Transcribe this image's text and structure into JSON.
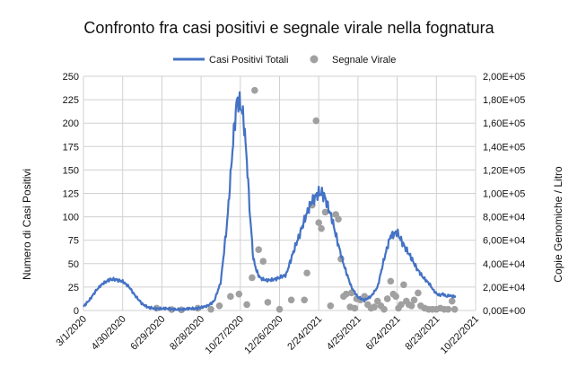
{
  "chart_data": {
    "type": "line",
    "title": "Confronto fra casi positivi e segnale virale nella fognatura",
    "ylabel_left": "Numero di Casi Positivi",
    "ylabel_right": "Copie Genomiche / Litro",
    "x_ticks": [
      "3/1/2020",
      "4/30/2020",
      "6/29/2020",
      "8/28/2020",
      "10/27/2020",
      "12/26/2020",
      "2/24/2021",
      "4/25/2021",
      "6/24/2021",
      "8/23/2021",
      "10/22/2021"
    ],
    "y_left_ticks": [
      "0",
      "25",
      "50",
      "75",
      "100",
      "125",
      "150",
      "175",
      "200",
      "225",
      "250"
    ],
    "y_right_ticks": [
      "0,00E+00",
      "2,00E+04",
      "4,00E+04",
      "6,00E+04",
      "8,00E+04",
      "1,00E+05",
      "1,20E+05",
      "1,40E+05",
      "1,60E+05",
      "1,80E+05",
      "2,00E+05"
    ],
    "ylim_left": [
      0,
      250
    ],
    "ylim_right": [
      0,
      200000
    ],
    "x_range_days": [
      0,
      600
    ],
    "grid": true,
    "legend_position": "top",
    "series": [
      {
        "name": "Casi Positivi Totali",
        "kind": "line",
        "axis": "left",
        "color": "#4472c4",
        "x_days": [
          0,
          10,
          20,
          30,
          40,
          50,
          60,
          70,
          80,
          90,
          100,
          110,
          120,
          130,
          140,
          150,
          160,
          170,
          180,
          190,
          200,
          210,
          220,
          230,
          235,
          240,
          245,
          250,
          255,
          260,
          265,
          270,
          280,
          290,
          300,
          310,
          320,
          330,
          340,
          350,
          360,
          365,
          370,
          380,
          390,
          400,
          410,
          420,
          430,
          440,
          450,
          460,
          470,
          480,
          490,
          500,
          510,
          520,
          530,
          535,
          540,
          545,
          550,
          555,
          560,
          565,
          570
        ],
        "y": [
          4,
          12,
          22,
          29,
          33,
          33,
          31,
          25,
          15,
          7,
          3,
          2,
          2,
          2,
          1,
          1,
          2,
          2,
          3,
          5,
          10,
          30,
          95,
          190,
          225,
          220,
          205,
          160,
          100,
          55,
          42,
          35,
          32,
          33,
          35,
          38,
          60,
          80,
          100,
          118,
          125,
          125,
          120,
          98,
          70,
          45,
          25,
          14,
          11,
          15,
          25,
          55,
          80,
          83,
          70,
          58,
          45,
          35,
          28,
          22,
          18,
          16,
          18,
          15,
          16,
          15,
          15
        ]
      },
      {
        "name": "Segnale Virale",
        "kind": "scatter",
        "axis": "right",
        "color": "#a0a0a0",
        "points": [
          [
            112,
            2000
          ],
          [
            135,
            800
          ],
          [
            150,
            500
          ],
          [
            175,
            2000
          ],
          [
            195,
            1000
          ],
          [
            208,
            4000
          ],
          [
            225,
            12000
          ],
          [
            238,
            14000
          ],
          [
            250,
            5000
          ],
          [
            258,
            28000
          ],
          [
            262,
            188000
          ],
          [
            268,
            52000
          ],
          [
            275,
            42000
          ],
          [
            282,
            7000
          ],
          [
            300,
            1000
          ],
          [
            318,
            9000
          ],
          [
            338,
            9000
          ],
          [
            342,
            32000
          ],
          [
            350,
            90000
          ],
          [
            356,
            162000
          ],
          [
            360,
            75000
          ],
          [
            364,
            70000
          ],
          [
            370,
            84000
          ],
          [
            378,
            4000
          ],
          [
            386,
            82000
          ],
          [
            390,
            78000
          ],
          [
            394,
            44000
          ],
          [
            398,
            12000
          ],
          [
            402,
            14000
          ],
          [
            408,
            3000
          ],
          [
            410,
            15000
          ],
          [
            415,
            2000
          ],
          [
            418,
            10000
          ],
          [
            424,
            9000
          ],
          [
            430,
            12000
          ],
          [
            435,
            5000
          ],
          [
            440,
            2000
          ],
          [
            445,
            3000
          ],
          [
            450,
            8000
          ],
          [
            455,
            4000
          ],
          [
            460,
            1000
          ],
          [
            465,
            10000
          ],
          [
            470,
            25000
          ],
          [
            474,
            14000
          ],
          [
            478,
            12000
          ],
          [
            482,
            2000
          ],
          [
            486,
            5000
          ],
          [
            490,
            22000
          ],
          [
            494,
            8000
          ],
          [
            498,
            5000
          ],
          [
            502,
            4000
          ],
          [
            506,
            9000
          ],
          [
            512,
            15000
          ],
          [
            516,
            4000
          ],
          [
            522,
            2000
          ],
          [
            528,
            1000
          ],
          [
            534,
            1000
          ],
          [
            540,
            1000
          ],
          [
            546,
            2000
          ],
          [
            552,
            1000
          ],
          [
            558,
            1000
          ],
          [
            564,
            8000
          ],
          [
            568,
            1000
          ]
        ]
      }
    ]
  }
}
